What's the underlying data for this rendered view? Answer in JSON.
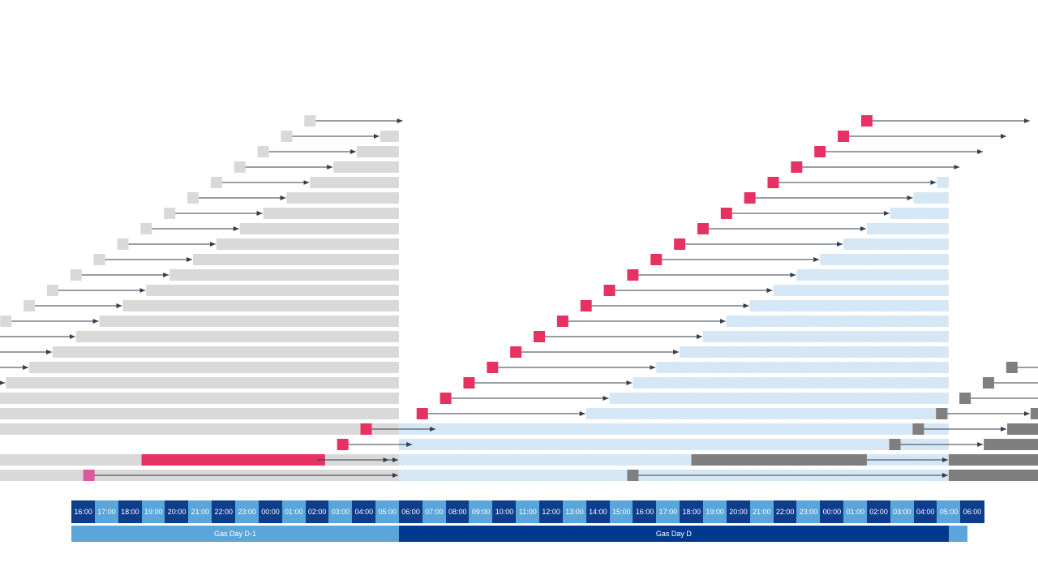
{
  "timeline": {
    "hours": [
      "16:00",
      "17:00",
      "18:00",
      "19:00",
      "20:00",
      "21:00",
      "22:00",
      "23:00",
      "00:00",
      "01:00",
      "02:00",
      "03:00",
      "04:00",
      "05:00",
      "06:00",
      "07:00",
      "08:00",
      "09:00",
      "10:00",
      "11:00",
      "12:00",
      "13:00",
      "14:00",
      "15:00",
      "16:00",
      "17:00",
      "18:00",
      "19:00",
      "20:00",
      "21:00",
      "22:00",
      "23:00",
      "00:00",
      "01:00",
      "02:00",
      "03:00",
      "04:00",
      "05:00",
      "06:00"
    ],
    "hour_colors": [
      "#0d3d8c",
      "#5aa5da"
    ]
  },
  "gas_days": [
    {
      "label": "Gas Day D-1",
      "start_hour": 0,
      "end_hour": 14,
      "color": "#5aa5da"
    },
    {
      "label": "Gas Day D",
      "start_hour": 14,
      "end_hour": 37.5,
      "color": "#003a8c"
    },
    {
      "label": "",
      "start_hour": 37.5,
      "end_hour": 38.3,
      "color": "#5aa5da"
    }
  ],
  "colors": {
    "day_d1_bar": "#d9d9d9",
    "day_d_bar": "#d8e9f6",
    "day_d_hatch": "#c6dcef",
    "renomination_d": "#e63262",
    "renomination_d1": "#d9d9d9",
    "next_day": "#7f7f7f",
    "arrow": "#333d4d",
    "pink_marker": "#d95b9b"
  },
  "legend_text": []
}
